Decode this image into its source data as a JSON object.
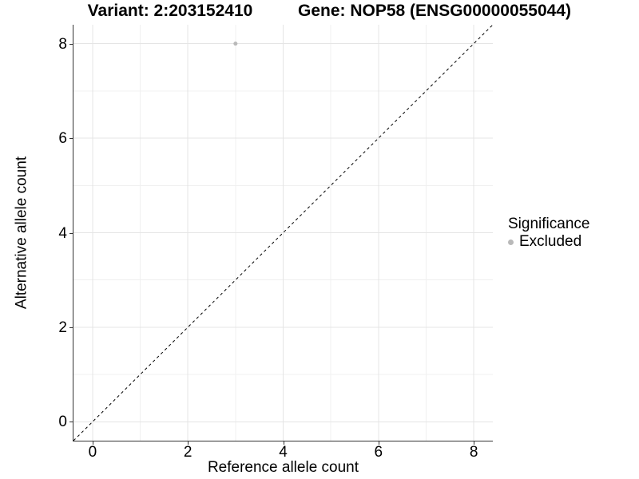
{
  "titles": {
    "variant": "Variant: 2:203152410",
    "gene": "Gene: NOP58 (ENSG00000055044)"
  },
  "chart_data": {
    "type": "scatter",
    "xlabel": "Reference allele count",
    "ylabel": "Alternative allele count",
    "xlim": [
      -0.4,
      8.4
    ],
    "ylim": [
      -0.4,
      8.4
    ],
    "x_ticks": [
      0,
      2,
      4,
      6,
      8
    ],
    "y_ticks": [
      0,
      2,
      4,
      6,
      8
    ],
    "x_minor_ticks": [
      1,
      3,
      5,
      7
    ],
    "y_minor_ticks": [
      1,
      3,
      5,
      7
    ],
    "grid": true,
    "series": [
      {
        "name": "Excluded",
        "color": "#b9b9b9",
        "point_radius": 2.5,
        "points": [
          {
            "x": 3,
            "y": 8
          }
        ]
      }
    ],
    "reference_line": {
      "type": "identity",
      "style": "dashed",
      "color": "#000000",
      "dash": "3.5 3.5"
    },
    "legend": {
      "title": "Significance",
      "position": "right",
      "entries": [
        {
          "label": "Excluded",
          "color": "#b9b9b9"
        }
      ]
    }
  },
  "colors": {
    "background": "#ffffff",
    "grid_major": "#e5e5e5",
    "grid_minor": "#f0f0f0",
    "axis_line": "#333333",
    "tick_mark": "#333333",
    "text": "#000000"
  }
}
